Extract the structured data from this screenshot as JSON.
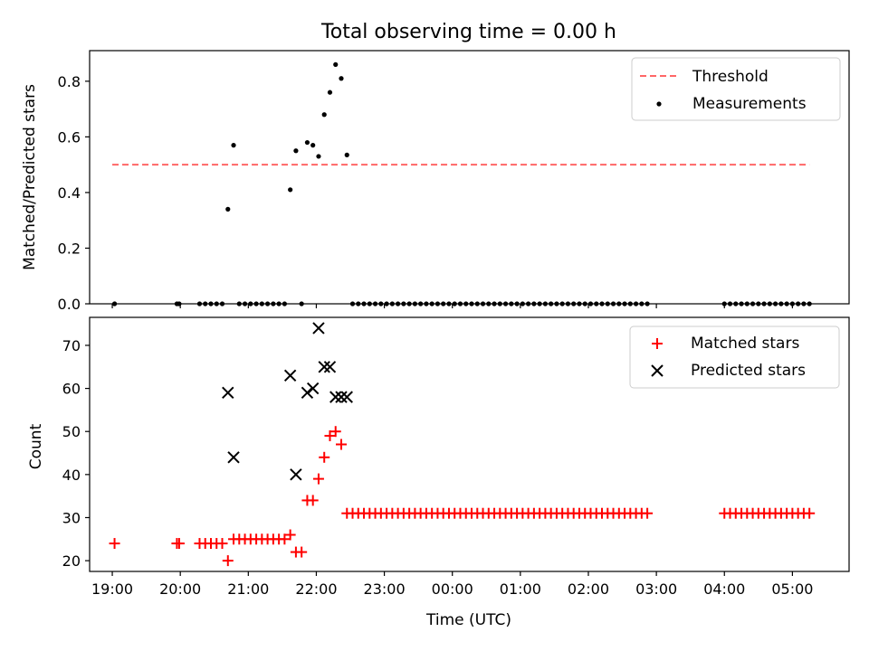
{
  "title": "Total observing time = 0.00 h",
  "colors": {
    "threshold": "#ff6666",
    "measurement": "#000000",
    "matched": "#ff0000",
    "predicted": "#000000"
  },
  "chart_data": [
    {
      "type": "scatter",
      "ylabel": "Matched/Predicted stars",
      "xlim": [
        "18:40",
        "05:50"
      ],
      "ylim": [
        0,
        0.91
      ],
      "y_ticks": [
        "0.0",
        "0.2",
        "0.4",
        "0.6",
        "0.8"
      ],
      "legend_position": "top-right",
      "grid": false,
      "threshold": {
        "name": "Threshold",
        "value": 0.5,
        "x_start": "19:00",
        "x_end": "05:15",
        "style": "dashed"
      },
      "series": [
        {
          "name": "Measurements",
          "marker": "dot",
          "points": [
            [
              "19:02",
              0
            ],
            [
              "19:57",
              0
            ],
            [
              "19:59",
              0
            ],
            [
              "20:17",
              0
            ],
            [
              "20:22",
              0
            ],
            [
              "20:27",
              0
            ],
            [
              "20:32",
              0
            ],
            [
              "20:37",
              0
            ],
            [
              "20:42",
              0.34
            ],
            [
              "20:47",
              0.57
            ],
            [
              "20:52",
              0
            ],
            [
              "20:57",
              0
            ],
            [
              "21:02",
              0
            ],
            [
              "21:07",
              0
            ],
            [
              "21:12",
              0
            ],
            [
              "21:17",
              0
            ],
            [
              "21:22",
              0
            ],
            [
              "21:27",
              0
            ],
            [
              "21:32",
              0
            ],
            [
              "21:37",
              0.41
            ],
            [
              "21:42",
              0.55
            ],
            [
              "21:47",
              0
            ],
            [
              "21:52",
              0.58
            ],
            [
              "21:57",
              0.57
            ],
            [
              "22:02",
              0.53
            ],
            [
              "22:07",
              0.68
            ],
            [
              "22:12",
              0.76
            ],
            [
              "22:17",
              0.86
            ],
            [
              "22:22",
              0.81
            ],
            [
              "22:27",
              0.535
            ],
            [
              "22:32",
              0
            ],
            [
              "22:37",
              0
            ],
            [
              "22:42",
              0
            ],
            [
              "22:47",
              0
            ],
            [
              "22:52",
              0
            ],
            [
              "22:57",
              0
            ],
            [
              "23:02",
              0
            ],
            [
              "23:07",
              0
            ],
            [
              "23:12",
              0
            ],
            [
              "23:17",
              0
            ],
            [
              "23:22",
              0
            ],
            [
              "23:27",
              0
            ],
            [
              "23:32",
              0
            ],
            [
              "23:37",
              0
            ],
            [
              "23:42",
              0
            ],
            [
              "23:47",
              0
            ],
            [
              "23:52",
              0
            ],
            [
              "23:57",
              0
            ],
            [
              "00:02",
              0
            ],
            [
              "00:07",
              0
            ],
            [
              "00:12",
              0
            ],
            [
              "00:17",
              0
            ],
            [
              "00:22",
              0
            ],
            [
              "00:27",
              0
            ],
            [
              "00:32",
              0
            ],
            [
              "00:37",
              0
            ],
            [
              "00:42",
              0
            ],
            [
              "00:47",
              0
            ],
            [
              "00:52",
              0
            ],
            [
              "00:57",
              0
            ],
            [
              "01:02",
              0
            ],
            [
              "01:07",
              0
            ],
            [
              "01:12",
              0
            ],
            [
              "01:17",
              0
            ],
            [
              "01:22",
              0
            ],
            [
              "01:27",
              0
            ],
            [
              "01:32",
              0
            ],
            [
              "01:37",
              0
            ],
            [
              "01:42",
              0
            ],
            [
              "01:47",
              0
            ],
            [
              "01:52",
              0
            ],
            [
              "01:57",
              0
            ],
            [
              "02:02",
              0
            ],
            [
              "02:07",
              0
            ],
            [
              "02:12",
              0
            ],
            [
              "02:17",
              0
            ],
            [
              "02:22",
              0
            ],
            [
              "02:27",
              0
            ],
            [
              "02:32",
              0
            ],
            [
              "02:37",
              0
            ],
            [
              "02:42",
              0
            ],
            [
              "02:47",
              0
            ],
            [
              "02:52",
              0
            ],
            [
              "04:00",
              0
            ],
            [
              "04:05",
              0
            ],
            [
              "04:10",
              0
            ],
            [
              "04:15",
              0
            ],
            [
              "04:20",
              0
            ],
            [
              "04:25",
              0
            ],
            [
              "04:30",
              0
            ],
            [
              "04:35",
              0
            ],
            [
              "04:40",
              0
            ],
            [
              "04:45",
              0
            ],
            [
              "04:50",
              0
            ],
            [
              "04:55",
              0
            ],
            [
              "05:00",
              0
            ],
            [
              "05:05",
              0
            ],
            [
              "05:10",
              0
            ],
            [
              "05:15",
              0
            ]
          ]
        }
      ]
    },
    {
      "type": "scatter",
      "xlabel": "Time (UTC)",
      "ylabel": "Count",
      "xlim": [
        "18:40",
        "05:50"
      ],
      "ylim": [
        17.5,
        76.5
      ],
      "y_ticks": [
        "20",
        "30",
        "40",
        "50",
        "60",
        "70"
      ],
      "x_ticks": [
        "19:00",
        "20:00",
        "21:00",
        "22:00",
        "23:00",
        "00:00",
        "01:00",
        "02:00",
        "03:00",
        "04:00",
        "05:00"
      ],
      "legend_position": "top-right",
      "grid": false,
      "series": [
        {
          "name": "Matched stars",
          "marker": "plus",
          "points": [
            [
              "19:02",
              24
            ],
            [
              "19:57",
              24
            ],
            [
              "19:59",
              24
            ],
            [
              "20:17",
              24
            ],
            [
              "20:22",
              24
            ],
            [
              "20:27",
              24
            ],
            [
              "20:32",
              24
            ],
            [
              "20:37",
              24
            ],
            [
              "20:42",
              20
            ],
            [
              "20:47",
              25
            ],
            [
              "20:52",
              25
            ],
            [
              "20:57",
              25
            ],
            [
              "21:02",
              25
            ],
            [
              "21:07",
              25
            ],
            [
              "21:12",
              25
            ],
            [
              "21:17",
              25
            ],
            [
              "21:22",
              25
            ],
            [
              "21:27",
              25
            ],
            [
              "21:32",
              25
            ],
            [
              "21:37",
              26
            ],
            [
              "21:42",
              22
            ],
            [
              "21:47",
              22
            ],
            [
              "21:52",
              34
            ],
            [
              "21:57",
              34
            ],
            [
              "22:02",
              39
            ],
            [
              "22:07",
              44
            ],
            [
              "22:12",
              49
            ],
            [
              "22:17",
              50
            ],
            [
              "22:22",
              47
            ],
            [
              "22:27",
              31
            ],
            [
              "22:32",
              31
            ],
            [
              "22:37",
              31
            ],
            [
              "22:42",
              31
            ],
            [
              "22:47",
              31
            ],
            [
              "22:52",
              31
            ],
            [
              "22:57",
              31
            ],
            [
              "23:02",
              31
            ],
            [
              "23:07",
              31
            ],
            [
              "23:12",
              31
            ],
            [
              "23:17",
              31
            ],
            [
              "23:22",
              31
            ],
            [
              "23:27",
              31
            ],
            [
              "23:32",
              31
            ],
            [
              "23:37",
              31
            ],
            [
              "23:42",
              31
            ],
            [
              "23:47",
              31
            ],
            [
              "23:52",
              31
            ],
            [
              "23:57",
              31
            ],
            [
              "00:02",
              31
            ],
            [
              "00:07",
              31
            ],
            [
              "00:12",
              31
            ],
            [
              "00:17",
              31
            ],
            [
              "00:22",
              31
            ],
            [
              "00:27",
              31
            ],
            [
              "00:32",
              31
            ],
            [
              "00:37",
              31
            ],
            [
              "00:42",
              31
            ],
            [
              "00:47",
              31
            ],
            [
              "00:52",
              31
            ],
            [
              "00:57",
              31
            ],
            [
              "01:02",
              31
            ],
            [
              "01:07",
              31
            ],
            [
              "01:12",
              31
            ],
            [
              "01:17",
              31
            ],
            [
              "01:22",
              31
            ],
            [
              "01:27",
              31
            ],
            [
              "01:32",
              31
            ],
            [
              "01:37",
              31
            ],
            [
              "01:42",
              31
            ],
            [
              "01:47",
              31
            ],
            [
              "01:52",
              31
            ],
            [
              "01:57",
              31
            ],
            [
              "02:02",
              31
            ],
            [
              "02:07",
              31
            ],
            [
              "02:12",
              31
            ],
            [
              "02:17",
              31
            ],
            [
              "02:22",
              31
            ],
            [
              "02:27",
              31
            ],
            [
              "02:32",
              31
            ],
            [
              "02:37",
              31
            ],
            [
              "02:42",
              31
            ],
            [
              "02:47",
              31
            ],
            [
              "02:52",
              31
            ],
            [
              "04:00",
              31
            ],
            [
              "04:05",
              31
            ],
            [
              "04:10",
              31
            ],
            [
              "04:15",
              31
            ],
            [
              "04:20",
              31
            ],
            [
              "04:25",
              31
            ],
            [
              "04:30",
              31
            ],
            [
              "04:35",
              31
            ],
            [
              "04:40",
              31
            ],
            [
              "04:45",
              31
            ],
            [
              "04:50",
              31
            ],
            [
              "04:55",
              31
            ],
            [
              "05:00",
              31
            ],
            [
              "05:05",
              31
            ],
            [
              "05:10",
              31
            ],
            [
              "05:15",
              31
            ]
          ]
        },
        {
          "name": "Predicted stars",
          "marker": "x",
          "points": [
            [
              "20:42",
              59
            ],
            [
              "20:47",
              44
            ],
            [
              "21:37",
              63
            ],
            [
              "21:42",
              40
            ],
            [
              "21:52",
              59
            ],
            [
              "21:57",
              60
            ],
            [
              "22:02",
              74
            ],
            [
              "22:07",
              65
            ],
            [
              "22:12",
              65
            ],
            [
              "22:17",
              58
            ],
            [
              "22:22",
              58
            ],
            [
              "22:27",
              58
            ]
          ]
        }
      ]
    }
  ]
}
